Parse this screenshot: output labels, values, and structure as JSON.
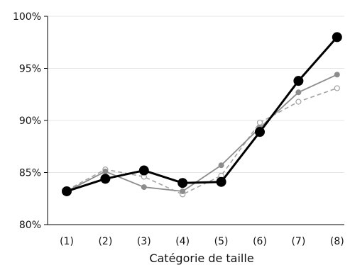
{
  "chart_data": {
    "type": "line",
    "title": "",
    "xlabel": "Catégorie de taille",
    "ylabel": "",
    "categories": [
      "(1)",
      "(2)",
      "(3)",
      "(4)",
      "(5)",
      "(6)",
      "(7)",
      "(8)"
    ],
    "ylim": [
      80,
      100
    ],
    "yticks": [
      80,
      85,
      90,
      95,
      100
    ],
    "ytick_labels": [
      "80%",
      "85%",
      "90%",
      "95%",
      "100%"
    ],
    "grid": true,
    "legend": "none",
    "series": [
      {
        "style": "dashed-gray-open-circle",
        "color": "#999999",
        "values": [
          83.3,
          85.3,
          84.6,
          82.9,
          84.7,
          89.8,
          91.8,
          93.1
        ]
      },
      {
        "style": "solid-gray-filled-circle",
        "color": "#8c8c8c",
        "values": [
          83.2,
          85.1,
          83.6,
          83.2,
          85.7,
          89.3,
          92.7,
          94.4
        ]
      },
      {
        "style": "solid-black-large-circle",
        "color": "#000000",
        "values": [
          83.2,
          84.4,
          85.2,
          84.0,
          84.1,
          88.9,
          93.8,
          98.0
        ]
      }
    ]
  }
}
